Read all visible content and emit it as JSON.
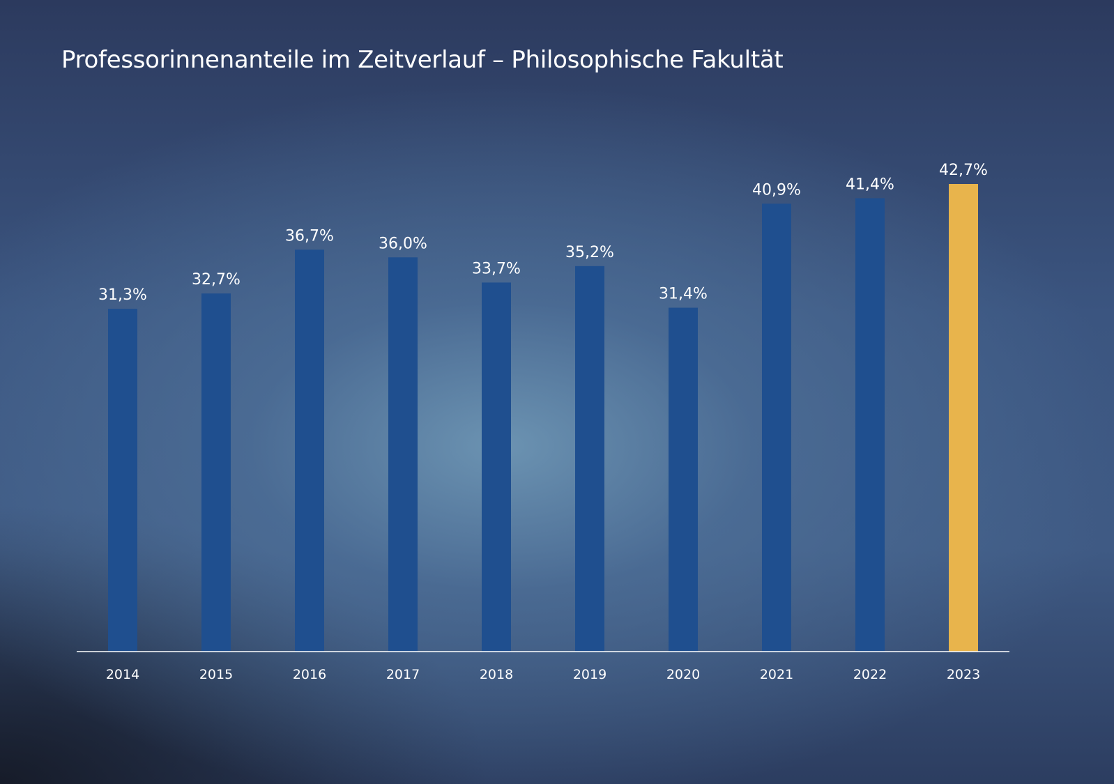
{
  "chart_data": {
    "type": "bar",
    "title": "Professorinnenanteile im Zeitverlauf – Philosophische Fakultät",
    "xlabel": "",
    "ylabel": "",
    "categories": [
      "2014",
      "2015",
      "2016",
      "2017",
      "2018",
      "2019",
      "2020",
      "2021",
      "2022",
      "2023"
    ],
    "values": [
      31.3,
      32.7,
      36.7,
      36.0,
      33.7,
      35.2,
      31.4,
      40.9,
      41.4,
      42.7
    ],
    "value_labels": [
      "31,3%",
      "32,7%",
      "36,7%",
      "36,0%",
      "33,7%",
      "35,2%",
      "31,4%",
      "40,9%",
      "41,4%",
      "42,7%"
    ],
    "ylim": [
      0,
      42.7
    ],
    "grid": false,
    "colors": {
      "default": "#1f4f8f",
      "highlight": "#e8b44c"
    },
    "highlight_index": 9
  }
}
